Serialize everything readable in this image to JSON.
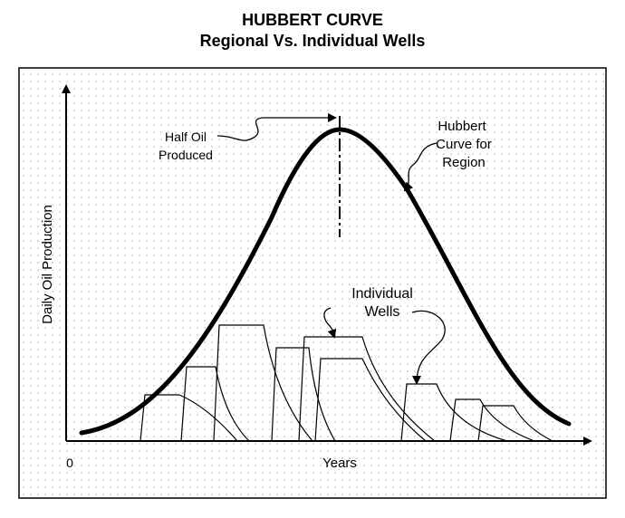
{
  "title": "HUBBERT CURVE",
  "subtitle": "Regional Vs. Individual Wells",
  "axes": {
    "ylabel": "Daily Oil Production",
    "xlabel": "Years",
    "origin": "0"
  },
  "annotations": {
    "half_oil_line1": "Half Oil",
    "half_oil_line2": "Produced",
    "hubbert_line1": "Hubbert",
    "hubbert_line2": "Curve for",
    "hubbert_line3": "Region",
    "wells_line1": "Individual",
    "wells_line2": "Wells"
  },
  "colors": {
    "background": "#ffffff",
    "frame": "#000000",
    "grid_dots": "#b0b0b0"
  }
}
